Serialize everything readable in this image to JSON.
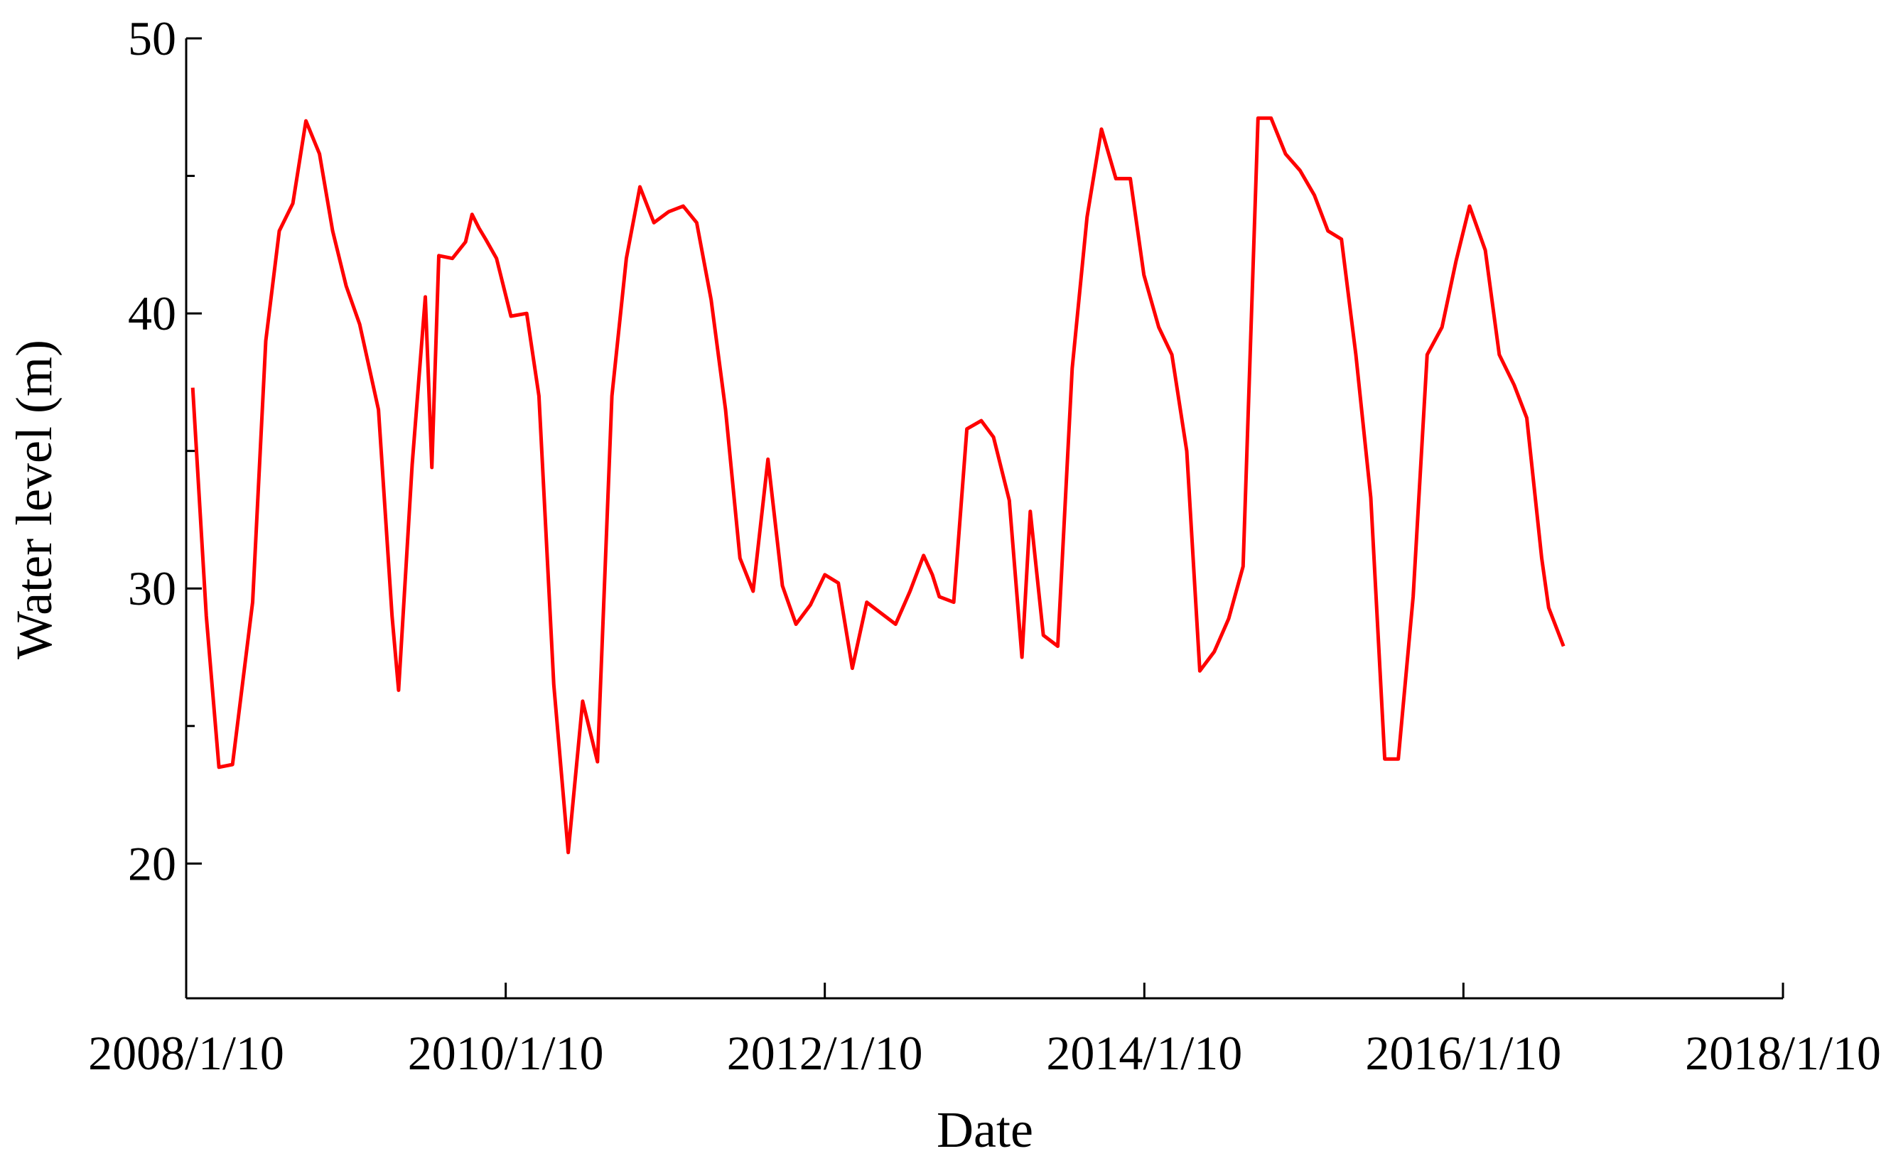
{
  "chart_data": {
    "type": "line",
    "xlabel": "Date",
    "ylabel": "Water level (m)",
    "color": "#ff0000",
    "xlim": [
      "2008/1/10",
      "2018/1/10"
    ],
    "xticks": [
      "2008/1/10",
      "2010/1/10",
      "2012/1/10",
      "2014/1/10",
      "2016/1/10",
      "2018/1/10"
    ],
    "ylim": [
      15.1,
      50
    ],
    "yticks": [
      20,
      30,
      40,
      50
    ],
    "yminorticks": [
      25,
      35,
      45
    ],
    "x": [
      "2008/1/25",
      "2008/2/25",
      "2008/3/25",
      "2008/4/25",
      "2008/6/10",
      "2008/7/10",
      "2008/8/10",
      "2008/9/10",
      "2008/10/10",
      "2008/11/10",
      "2008/12/10",
      "2009/1/10",
      "2009/2/10",
      "2009/3/25",
      "2009/4/25",
      "2009/5/10",
      "2009/6/10",
      "2009/7/10",
      "2009/7/25",
      "2009/8/10",
      "2009/9/10",
      "2009/10/10",
      "2009/10/25",
      "2009/11/10",
      "2009/11/25",
      "2009/12/20",
      "2010/1/22",
      "2010/2/27",
      "2010/3/27",
      "2010/4/30",
      "2010/6/2",
      "2010/7/5",
      "2010/8/8",
      "2010/9/10",
      "2010/10/13",
      "2010/11/13",
      "2010/12/15",
      "2011/1/18",
      "2011/2/20",
      "2011/3/23",
      "2011/4/25",
      "2011/5/28",
      "2011/6/30",
      "2011/7/30",
      "2011/9/2",
      "2011/10/5",
      "2011/10/16",
      "2011/11/5",
      "2011/12/8",
      "2012/1/10",
      "2012/2/10",
      "2012/3/13",
      "2012/4/15",
      "2012/5/18",
      "2012/6/20",
      "2012/7/23",
      "2012/8/23",
      "2012/9/12",
      "2012/9/28",
      "2012/10/31",
      "2012/11/30",
      "2013/1/2",
      "2013/1/30",
      "2013/3/7",
      "2013/4/5",
      "2013/4/24",
      "2013/5/24",
      "2013/6/26",
      "2013/7/29",
      "2013/9/1",
      "2013/10/4",
      "2013/11/6",
      "2013/12/9",
      "2014/1/9",
      "2014/2/12",
      "2014/3/14",
      "2014/4/17",
      "2014/5/17",
      "2014/6/19",
      "2014/7/22",
      "2014/8/24",
      "2014/9/27",
      "2014/10/27",
      "2014/11/29",
      "2015/1/1",
      "2015/2/3",
      "2015/3/6",
      "2015/4/6",
      "2015/5/9",
      "2015/6/12",
      "2015/7/14",
      "2015/8/14",
      "2015/9/17",
      "2015/10/19",
      "2015/11/22",
      "2015/12/24",
      "2016/1/24",
      "2016/2/29",
      "2016/4/1",
      "2016/5/5",
      "2016/6/3",
      "2016/7/7",
      "2016/7/23",
      "2016/8/26"
    ],
    "values": [
      37.3,
      29,
      23.5,
      23.6,
      29.5,
      39,
      43,
      44,
      47,
      45.8,
      43,
      41,
      39.6,
      36.5,
      29,
      26.3,
      34.5,
      40.6,
      34.4,
      42.1,
      42,
      42.6,
      43.6,
      43.1,
      42.7,
      42,
      39.9,
      40,
      37,
      26.5,
      20.4,
      25.9,
      23.7,
      37,
      42,
      44.6,
      43.3,
      43.7,
      43.9,
      43.3,
      40.5,
      36.5,
      31.1,
      29.9,
      34.7,
      30.1,
      29.6,
      28.7,
      29.4,
      30.5,
      30.2,
      27.1,
      29.5,
      29.1,
      28.7,
      29.9,
      31.2,
      30.5,
      29.7,
      29.5,
      35.8,
      36.1,
      35.5,
      33.2,
      27.5,
      32.8,
      28.3,
      27.9,
      38,
      43.5,
      46.7,
      44.9,
      44.9,
      41.4,
      39.5,
      38.5,
      35,
      27,
      27.7,
      28.9,
      30.8,
      47.1,
      47.1,
      45.8,
      45.2,
      44.3,
      43,
      42.7,
      38.5,
      33.3,
      23.8,
      23.8,
      29.7,
      38.5,
      39.5,
      41.9,
      43.9,
      42.3,
      38.5,
      37.4,
      36.2,
      31.1,
      29.3,
      27.9
    ]
  }
}
